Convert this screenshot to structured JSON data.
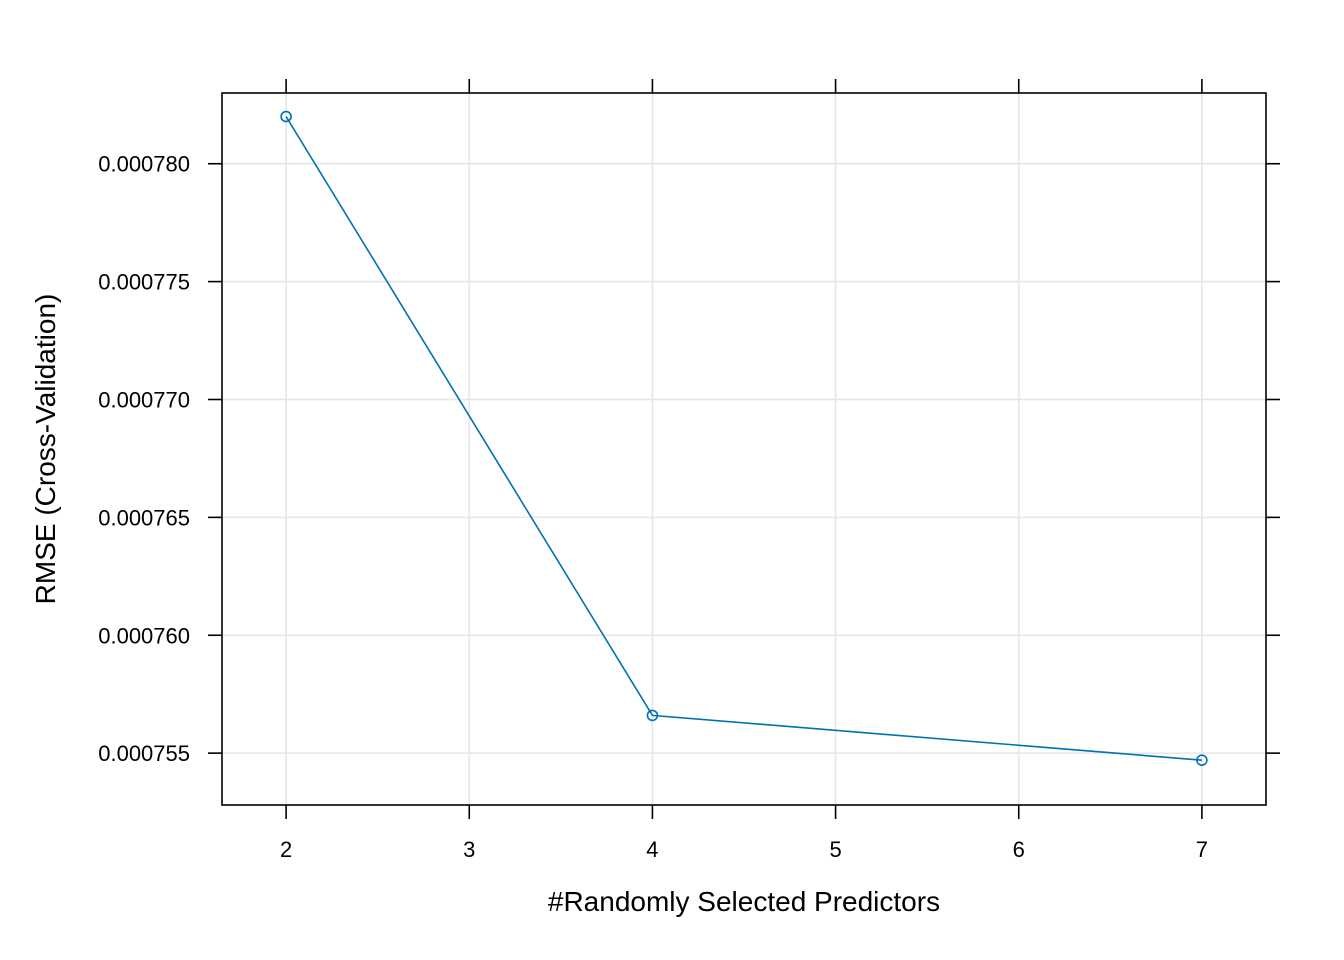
{
  "chart_data": {
    "type": "line",
    "title": "",
    "xlabel": "#Randomly Selected Predictors",
    "ylabel": "RMSE (Cross-Validation)",
    "x_ticks": [
      2,
      3,
      4,
      5,
      6,
      7
    ],
    "x_tick_labels": [
      "2",
      "3",
      "4",
      "5",
      "6",
      "7"
    ],
    "y_ticks": [
      0.000755,
      0.00076,
      0.000765,
      0.00077,
      0.000775,
      0.00078
    ],
    "y_tick_labels": [
      "0.000755",
      "0.000760",
      "0.000765",
      "0.000770",
      "0.000775",
      "0.000780"
    ],
    "xlim": [
      1.65,
      7.35
    ],
    "ylim": [
      0.0007528,
      0.000783
    ],
    "grid": true,
    "series": [
      {
        "x": [
          2,
          4,
          7
        ],
        "y": [
          0.000782,
          0.0007566,
          0.0007547
        ],
        "color": "#0072B2",
        "marker": "open-circle"
      }
    ]
  }
}
